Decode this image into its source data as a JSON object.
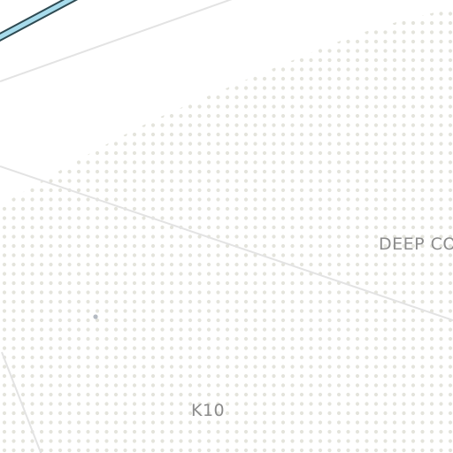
{
  "map": {
    "labels": {
      "region": "DEEP CO",
      "road_ref": "K10"
    },
    "colors": {
      "background": "#ffffff",
      "dot_fill": "#e4e4dc",
      "road_line": "#e3e3e3",
      "water_fill": "#a8dcec",
      "water_outline": "#2e4a52",
      "label_text": "#8c8c8c"
    }
  }
}
